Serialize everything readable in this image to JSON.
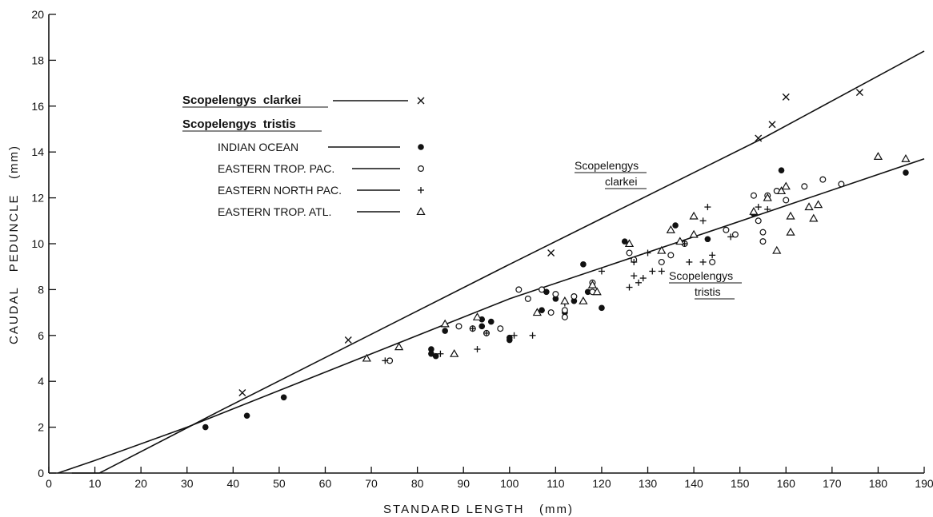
{
  "chart_data": {
    "type": "scatter",
    "xlabel": "STANDARD LENGTH   (mm)",
    "ylabel": "CAUDAL   PEDUNCLE   (mm)",
    "xlim": [
      0,
      190
    ],
    "ylim": [
      0,
      20
    ],
    "xticks": [
      0,
      10,
      20,
      30,
      40,
      50,
      60,
      70,
      80,
      90,
      100,
      110,
      120,
      130,
      140,
      150,
      160,
      170,
      180,
      190
    ],
    "yticks": [
      0,
      2,
      4,
      6,
      8,
      10,
      12,
      14,
      16,
      18,
      20
    ],
    "grid": false,
    "legend_position": "upper-left",
    "legend": {
      "species_clarkei": "Scopelengys  clarkei",
      "species_tristis": "Scopelengys  tristis",
      "entries": [
        {
          "series": 0,
          "label": "",
          "marker": "x"
        },
        {
          "series": 1,
          "label": "INDIAN OCEAN",
          "marker": "filled-circle"
        },
        {
          "series": 2,
          "label": "EASTERN TROP. PAC.",
          "marker": "open-circle"
        },
        {
          "series": 3,
          "label": "EASTERN NORTH PAC.",
          "marker": "plus"
        },
        {
          "series": 4,
          "label": "EASTERN TROP. ATL.",
          "marker": "triangle"
        }
      ]
    },
    "series": [
      {
        "name": "Scopelengys clarkei",
        "marker": "x",
        "points": [
          [
            42,
            3.5
          ],
          [
            65,
            5.8
          ],
          [
            109,
            9.6
          ],
          [
            154,
            14.6
          ],
          [
            157,
            15.2
          ],
          [
            160,
            16.4
          ],
          [
            176,
            16.6
          ]
        ]
      },
      {
        "name": "INDIAN OCEAN",
        "marker": "filled-circle",
        "points": [
          [
            34,
            2.0
          ],
          [
            43,
            2.5
          ],
          [
            51,
            3.3
          ],
          [
            83,
            5.2
          ],
          [
            83,
            5.4
          ],
          [
            84,
            5.1
          ],
          [
            86,
            6.2
          ],
          [
            94,
            6.4
          ],
          [
            94,
            6.7
          ],
          [
            96,
            6.6
          ],
          [
            98,
            6.3
          ],
          [
            100,
            5.8
          ],
          [
            100,
            5.9
          ],
          [
            107,
            7.1
          ],
          [
            108,
            7.9
          ],
          [
            110,
            7.6
          ],
          [
            112,
            7.0
          ],
          [
            114,
            7.5
          ],
          [
            116,
            9.1
          ],
          [
            117,
            7.9
          ],
          [
            120,
            7.2
          ],
          [
            125,
            10.1
          ],
          [
            136,
            10.8
          ],
          [
            143,
            10.2
          ],
          [
            153,
            11.3
          ],
          [
            159,
            13.2
          ],
          [
            186,
            13.1
          ]
        ]
      },
      {
        "name": "EASTERN TROP. PAC.",
        "marker": "open-circle",
        "points": [
          [
            74,
            4.9
          ],
          [
            89,
            6.4
          ],
          [
            92,
            6.3
          ],
          [
            95,
            6.1
          ],
          [
            98,
            6.3
          ],
          [
            102,
            8.0
          ],
          [
            104,
            7.6
          ],
          [
            107,
            8.0
          ],
          [
            109,
            7.0
          ],
          [
            110,
            7.8
          ],
          [
            112,
            7.1
          ],
          [
            112,
            6.8
          ],
          [
            114,
            7.7
          ],
          [
            118,
            7.9
          ],
          [
            118,
            8.3
          ],
          [
            126,
            9.6
          ],
          [
            127,
            9.3
          ],
          [
            133,
            9.2
          ],
          [
            135,
            9.5
          ],
          [
            138,
            10.0
          ],
          [
            144,
            9.2
          ],
          [
            147,
            10.6
          ],
          [
            149,
            10.4
          ],
          [
            153,
            12.1
          ],
          [
            154,
            11.0
          ],
          [
            155,
            10.5
          ],
          [
            155,
            10.1
          ],
          [
            156,
            12.1
          ],
          [
            158,
            12.3
          ],
          [
            160,
            11.9
          ],
          [
            164,
            12.5
          ],
          [
            168,
            12.8
          ],
          [
            172,
            12.6
          ]
        ]
      },
      {
        "name": "EASTERN NORTH PAC.",
        "marker": "plus",
        "points": [
          [
            73,
            4.9
          ],
          [
            85,
            5.2
          ],
          [
            92,
            6.3
          ],
          [
            93,
            5.4
          ],
          [
            95,
            6.1
          ],
          [
            101,
            6.0
          ],
          [
            105,
            6.0
          ],
          [
            112,
            7.4
          ],
          [
            120,
            8.8
          ],
          [
            126,
            8.1
          ],
          [
            127,
            8.6
          ],
          [
            127,
            9.2
          ],
          [
            128,
            8.3
          ],
          [
            129,
            8.5
          ],
          [
            130,
            9.6
          ],
          [
            131,
            8.8
          ],
          [
            133,
            8.8
          ],
          [
            138,
            10.0
          ],
          [
            139,
            9.2
          ],
          [
            142,
            11.0
          ],
          [
            142,
            9.2
          ],
          [
            143,
            11.6
          ],
          [
            144,
            9.5
          ],
          [
            148,
            10.3
          ],
          [
            154,
            11.6
          ],
          [
            156,
            11.5
          ]
        ]
      },
      {
        "name": "EASTERN TROP. ATL.",
        "marker": "triangle",
        "points": [
          [
            69,
            5.0
          ],
          [
            76,
            5.5
          ],
          [
            86,
            6.5
          ],
          [
            88,
            5.2
          ],
          [
            93,
            6.8
          ],
          [
            106,
            7.0
          ],
          [
            112,
            7.5
          ],
          [
            116,
            7.5
          ],
          [
            118,
            8.2
          ],
          [
            119,
            7.9
          ],
          [
            126,
            10.0
          ],
          [
            133,
            9.7
          ],
          [
            135,
            10.6
          ],
          [
            137,
            10.1
          ],
          [
            140,
            10.4
          ],
          [
            140,
            11.2
          ],
          [
            153,
            11.4
          ],
          [
            156,
            12.0
          ],
          [
            158,
            9.7
          ],
          [
            159,
            12.3
          ],
          [
            160,
            12.5
          ],
          [
            161,
            11.2
          ],
          [
            161,
            10.5
          ],
          [
            165,
            11.6
          ],
          [
            166,
            11.1
          ],
          [
            167,
            11.7
          ],
          [
            180,
            13.8
          ],
          [
            186,
            13.7
          ]
        ]
      }
    ],
    "fit_lines": [
      {
        "name": "Scopelengys clarkei",
        "points": [
          [
            5,
            0
          ],
          [
            11,
            0
          ],
          [
            38,
            2.8
          ],
          [
            100,
            9.1
          ],
          [
            155,
            14.6
          ],
          [
            190,
            18.4
          ]
        ]
      },
      {
        "name": "Scopelengys tristis",
        "points": [
          [
            2,
            0
          ],
          [
            10,
            0.55
          ],
          [
            30,
            2.0
          ],
          [
            70,
            5.2
          ],
          [
            100,
            7.6
          ],
          [
            140,
            10.3
          ],
          [
            190,
            13.7
          ]
        ]
      }
    ],
    "annotations": {
      "clarkei_line1": "Scopelengys",
      "clarkei_line2": "clarkei",
      "tristis_line1": "Scopelengys",
      "tristis_line2": "tristis"
    }
  }
}
